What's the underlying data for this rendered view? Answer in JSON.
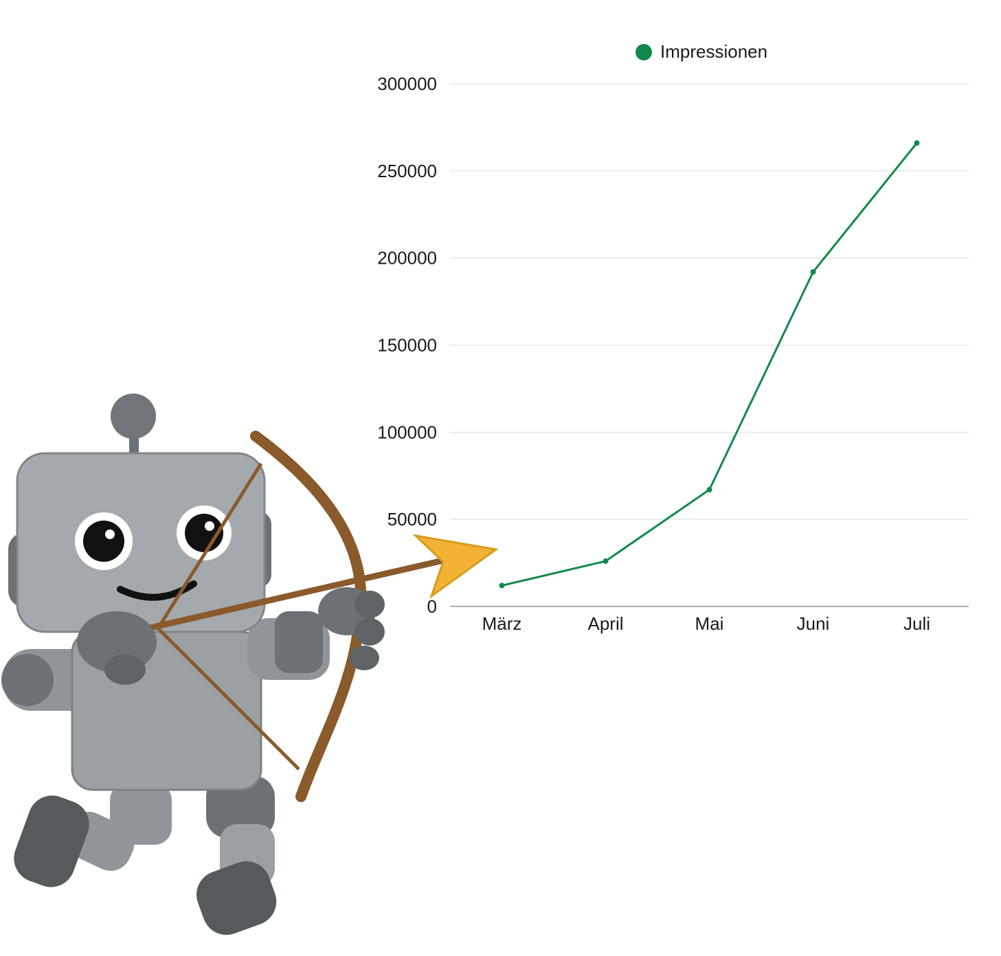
{
  "chart_data": {
    "type": "line",
    "title": "",
    "xlabel": "",
    "ylabel": "",
    "categories": [
      "März",
      "April",
      "Mai",
      "Juni",
      "Juli"
    ],
    "series": [
      {
        "name": "Impressionen",
        "values": [
          12000,
          26000,
          67000,
          192000,
          266000
        ]
      }
    ],
    "ylim": [
      0,
      300000
    ],
    "yticks": [
      "0",
      "50000",
      "100000",
      "150000",
      "200000",
      "250000",
      "300000"
    ],
    "grid": true,
    "legend_position": "top",
    "colors": {
      "series": "#0f8a4a",
      "grid": "#dddddd",
      "axis": "#999999"
    }
  },
  "illustration": {
    "subject": "robot-archer",
    "colors": {
      "body": "#9aa0a3",
      "dark": "#5e6366",
      "bow": "#8a5a2b",
      "arrowhead": "#f2b233"
    }
  }
}
